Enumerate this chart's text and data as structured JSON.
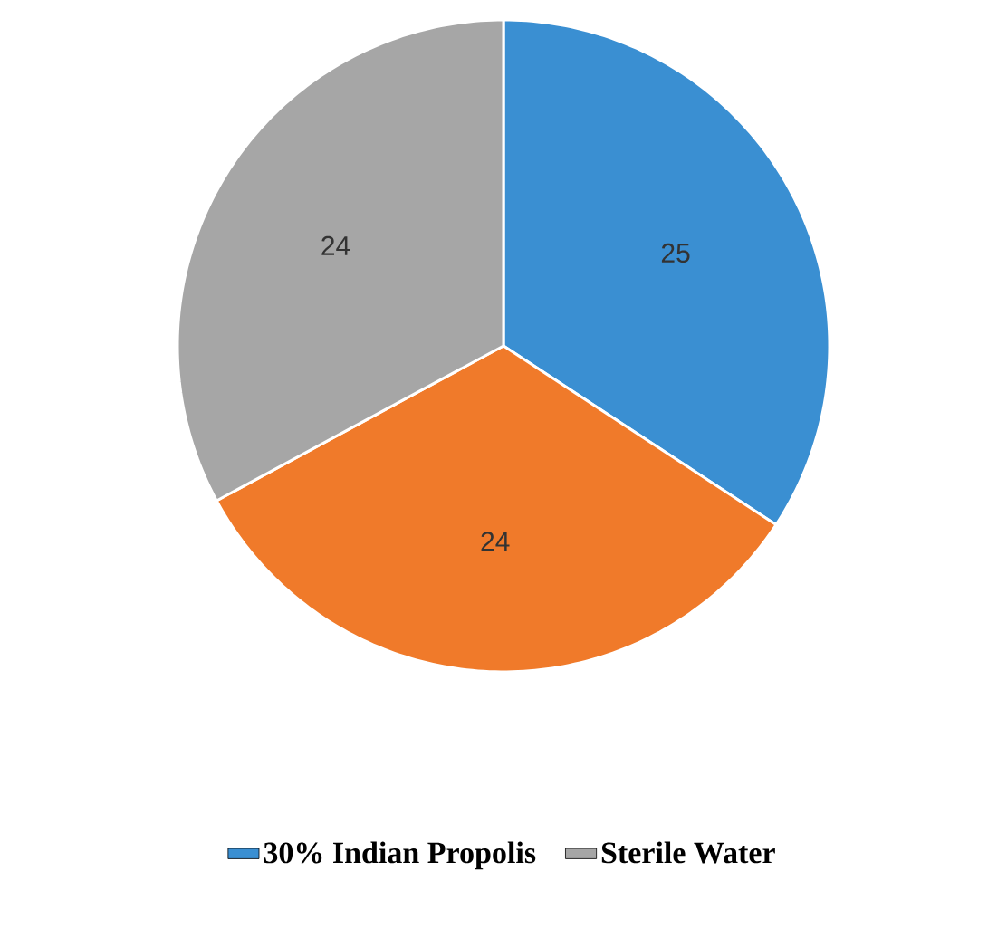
{
  "chart_data": {
    "type": "pie",
    "categories": [
      "30% Indian Propolis",
      null,
      "Sterile Water"
    ],
    "values": [
      25,
      24,
      24
    ],
    "colors": [
      "#3a8fd2",
      "#f07a2a",
      "#a6a6a6"
    ],
    "data_labels": true,
    "legend": "bottom"
  }
}
